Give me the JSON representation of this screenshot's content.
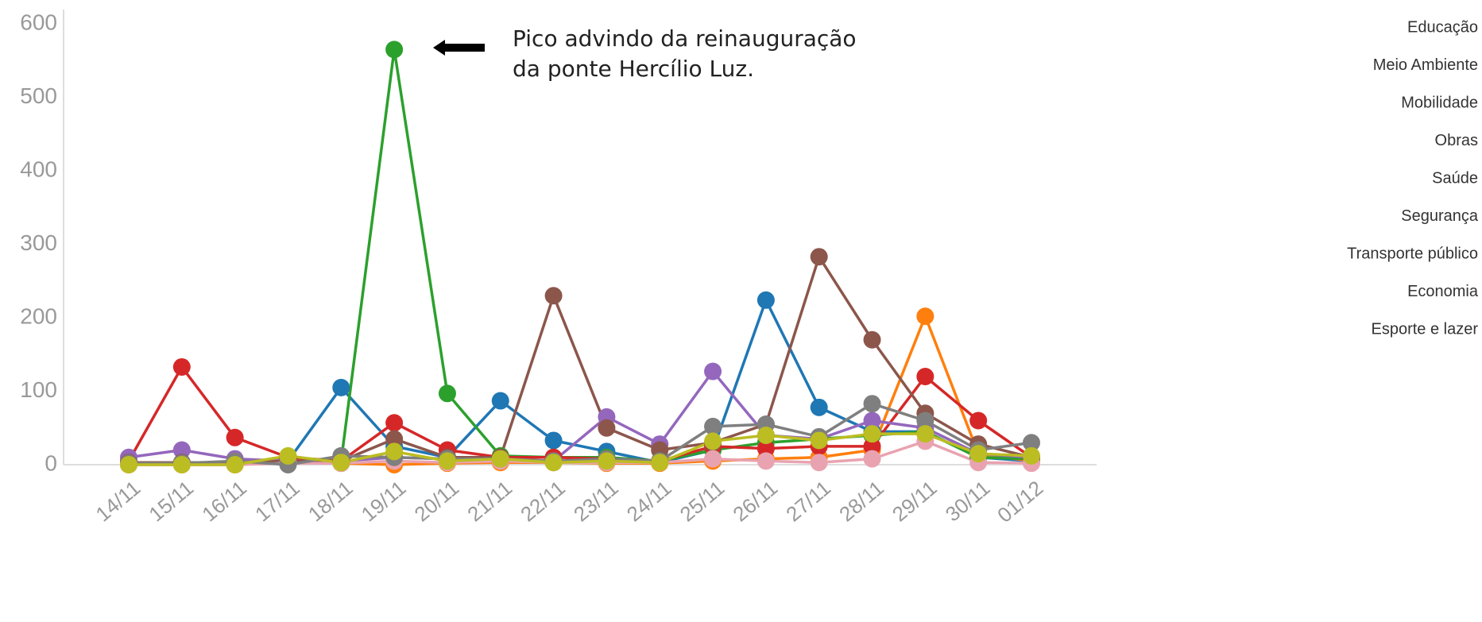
{
  "chart_data": {
    "type": "line",
    "categories": [
      "14/11",
      "15/11",
      "16/11",
      "17/11",
      "18/11",
      "19/11",
      "20/11",
      "21/11",
      "22/11",
      "23/11",
      "24/11",
      "25/11",
      "26/11",
      "27/11",
      "28/11",
      "29/11",
      "30/11",
      "01/12"
    ],
    "series": [
      {
        "name": "Educação",
        "color": "#1f77b4",
        "values": [
          3,
          3,
          3,
          5,
          105,
          25,
          10,
          87,
          33,
          18,
          3,
          20,
          224,
          78,
          45,
          45,
          10,
          5
        ]
      },
      {
        "name": "Meio Ambiente",
        "color": "#ff7f0e",
        "values": [
          0,
          0,
          0,
          3,
          2,
          0,
          2,
          3,
          3,
          2,
          2,
          5,
          8,
          10,
          20,
          202,
          15,
          5
        ]
      },
      {
        "name": "Mobilidade",
        "color": "#2ca02c",
        "values": [
          2,
          2,
          2,
          10,
          5,
          565,
          97,
          12,
          10,
          10,
          5,
          20,
          30,
          35,
          40,
          45,
          10,
          8
        ]
      },
      {
        "name": "Obras",
        "color": "#d62728",
        "values": [
          5,
          133,
          37,
          10,
          5,
          57,
          20,
          10,
          10,
          8,
          5,
          25,
          22,
          25,
          25,
          120,
          60,
          10
        ]
      },
      {
        "name": "Saúde",
        "color": "#9467bd",
        "values": [
          10,
          20,
          8,
          5,
          5,
          10,
          8,
          8,
          5,
          65,
          28,
          127,
          40,
          35,
          60,
          50,
          15,
          10
        ]
      },
      {
        "name": "Segurança",
        "color": "#8c564b",
        "values": [
          3,
          3,
          3,
          5,
          5,
          35,
          10,
          10,
          230,
          50,
          20,
          30,
          55,
          283,
          170,
          70,
          28,
          10
        ]
      },
      {
        "name": "Transporte público",
        "color": "#e9a3b0",
        "values": [
          0,
          0,
          0,
          2,
          2,
          5,
          3,
          5,
          3,
          3,
          3,
          8,
          5,
          3,
          8,
          32,
          3,
          2
        ]
      },
      {
        "name": "Economia",
        "color": "#7f7f7f",
        "values": [
          2,
          2,
          5,
          0,
          12,
          10,
          8,
          8,
          5,
          8,
          5,
          52,
          55,
          38,
          83,
          60,
          20,
          30
        ]
      },
      {
        "name": "Esporte e lazer",
        "color": "#bcbd22",
        "values": [
          0,
          0,
          0,
          12,
          3,
          18,
          5,
          8,
          3,
          5,
          3,
          32,
          40,
          33,
          42,
          42,
          15,
          12
        ]
      }
    ],
    "ylim": [
      0,
      600
    ],
    "yticks": [
      0,
      100,
      200,
      300,
      400,
      500,
      600
    ],
    "grid": false,
    "annotation": [
      "Pico advindo da reinauguração",
      "da ponte Hercílio Luz."
    ]
  }
}
